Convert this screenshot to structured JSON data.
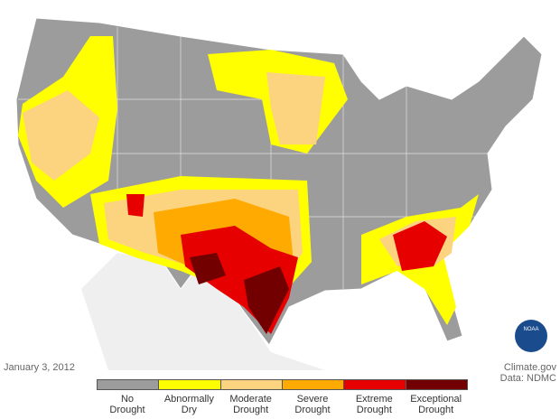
{
  "date": "January 3, 2012",
  "credit": {
    "source": "Climate.gov",
    "data": "Data: NDMC"
  },
  "logo": "NOAA",
  "legend": {
    "items": [
      {
        "lines": [
          "No",
          "Drought"
        ],
        "color": "#9c9c9c"
      },
      {
        "lines": [
          "Abnormally",
          "Dry"
        ],
        "color": "#ffff00"
      },
      {
        "lines": [
          "Moderate",
          "Drought"
        ],
        "color": "#fcd37f"
      },
      {
        "lines": [
          "Severe",
          "Drought"
        ],
        "color": "#ffaa00"
      },
      {
        "lines": [
          "Extreme",
          "Drought"
        ],
        "color": "#e60000"
      },
      {
        "lines": [
          "Exceptional",
          "Drought"
        ],
        "color": "#730000"
      }
    ]
  }
}
